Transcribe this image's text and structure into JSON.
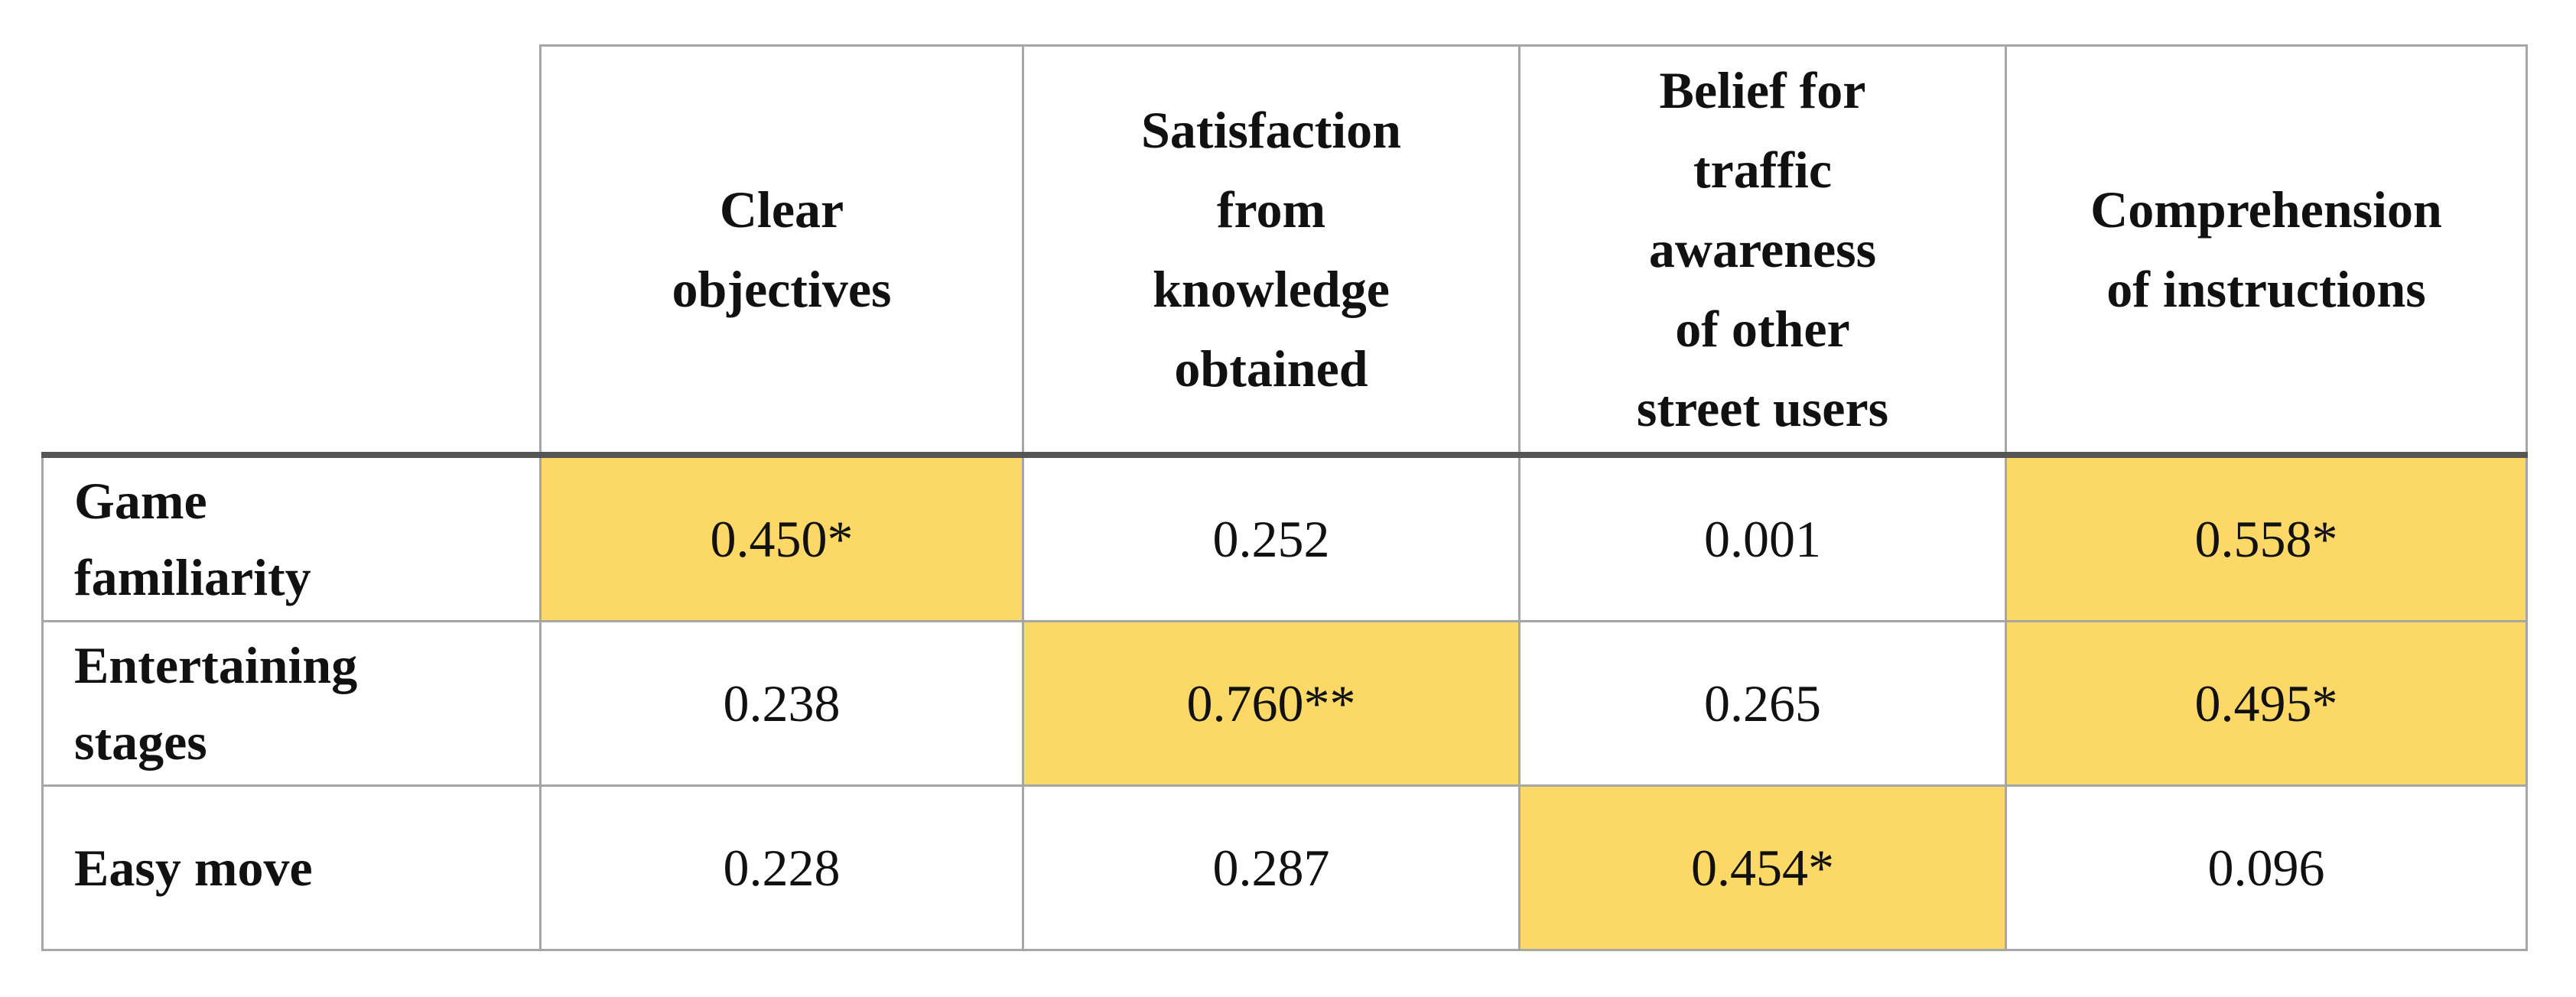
{
  "table": {
    "header": [
      [
        "Clear",
        "objectives"
      ],
      [
        "Satisfaction",
        "from",
        "knowledge",
        "obtained"
      ],
      [
        "Belief for",
        "traffic",
        "awareness",
        "of other",
        "street users"
      ],
      [
        "Comprehension",
        "of instructions"
      ]
    ],
    "row_labels": [
      [
        "Game",
        "familiarity"
      ],
      [
        "Entertaining",
        "stages"
      ],
      [
        "Easy move"
      ]
    ],
    "rows": [
      [
        "0.450*",
        "0.252",
        "0.001",
        "0.558*"
      ],
      [
        "0.238",
        "0.760**",
        "0.265",
        "0.495*"
      ],
      [
        "0.228",
        "0.287",
        "0.454*",
        "0.096"
      ]
    ],
    "highlighted": [
      [
        true,
        false,
        false,
        true
      ],
      [
        false,
        true,
        false,
        true
      ],
      [
        false,
        false,
        true,
        false
      ]
    ],
    "highlight_color": "#fcd966"
  }
}
